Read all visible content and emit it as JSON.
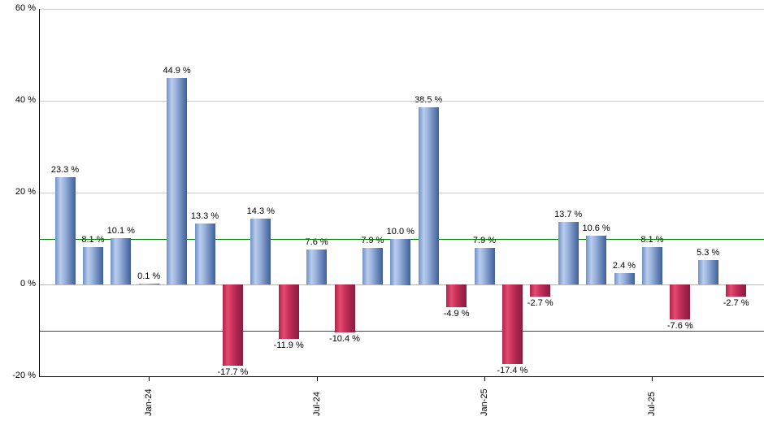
{
  "chart_data": {
    "type": "bar",
    "title": "",
    "unit": "%",
    "y_axis": {
      "min": -20,
      "max": 60,
      "tick_interval": 20,
      "ticks": [
        {
          "value": 60,
          "label": "60 %"
        },
        {
          "value": 40,
          "label": "40 %"
        },
        {
          "value": 20,
          "label": "20 %"
        },
        {
          "value": 0,
          "label": "0 %"
        },
        {
          "value": -20,
          "label": "-20 %"
        }
      ]
    },
    "grid": "horizontal",
    "reference_lines": [
      {
        "value": 10,
        "color": "#007a00"
      },
      {
        "value": -10,
        "color": "#007a00"
      }
    ],
    "bars": [
      {
        "value": 23.3,
        "label": "23.3 %"
      },
      {
        "value": 8.1,
        "label": "8.1 %"
      },
      {
        "value": 10.1,
        "label": "10.1 %"
      },
      {
        "value": 0.1,
        "label": "0.1 %"
      },
      {
        "value": 44.9,
        "label": "44.9 %"
      },
      {
        "value": 13.3,
        "label": "13.3 %"
      },
      {
        "value": -17.7,
        "label": "-17.7 %"
      },
      {
        "value": 14.3,
        "label": "14.3 %"
      },
      {
        "value": -11.9,
        "label": "-11.9 %"
      },
      {
        "value": 7.6,
        "label": "7.6 %"
      },
      {
        "value": -10.4,
        "label": "-10.4 %"
      },
      {
        "value": 7.9,
        "label": "7.9 %"
      },
      {
        "value": 10.0,
        "label": "10.0 %"
      },
      {
        "value": 38.5,
        "label": "38.5 %"
      },
      {
        "value": -4.9,
        "label": "-4.9 %"
      },
      {
        "value": 7.9,
        "label": "7.9 %"
      },
      {
        "value": -17.4,
        "label": "-17.4 %"
      },
      {
        "value": -2.7,
        "label": "-2.7 %"
      },
      {
        "value": 13.7,
        "label": "13.7 %"
      },
      {
        "value": 10.6,
        "label": "10.6 %"
      },
      {
        "value": 2.4,
        "label": "2.4 %"
      },
      {
        "value": 8.1,
        "label": "8.1 %"
      },
      {
        "value": -7.6,
        "label": "-7.6 %"
      },
      {
        "value": 5.3,
        "label": "5.3 %"
      },
      {
        "value": -2.7,
        "label": "-2.7 %"
      }
    ],
    "x_ticks": [
      {
        "label": "Jan-24",
        "bar_index": 3
      },
      {
        "label": "Jul-24",
        "bar_index": 9
      },
      {
        "label": "Jan-25",
        "bar_index": 15
      },
      {
        "label": "Jul-25",
        "bar_index": 21
      }
    ],
    "colors": {
      "positive_bar": "#6d8cc4",
      "positive_bar_light": "#b9cdec",
      "positive_bar_dark": "#41609a",
      "negative_bar": "#ca3159",
      "negative_bar_light": "#e34b70",
      "negative_bar_dark": "#8d1c40",
      "gridline": "#cccccc",
      "zero_line": "#b8b8b8",
      "reference_line": "#007a00",
      "axis": "#000000",
      "background": "#ffffff"
    },
    "legend": null
  }
}
